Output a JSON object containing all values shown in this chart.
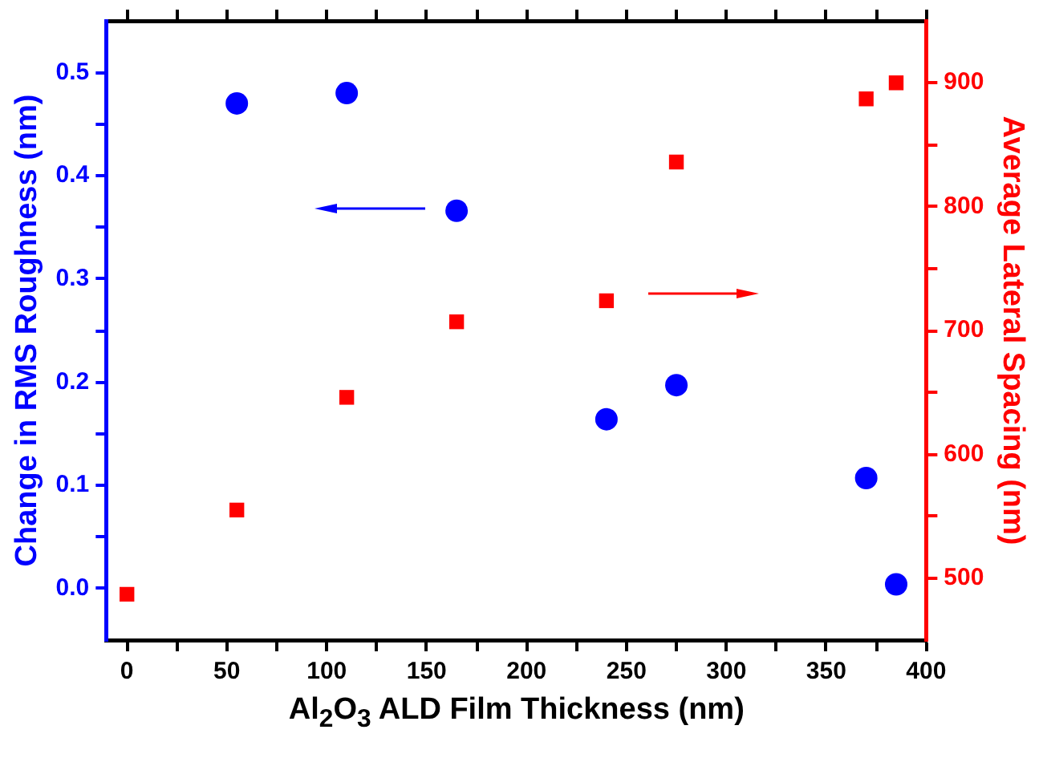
{
  "chart_data": {
    "type": "scatter",
    "xlabel": "Al$_{2}$O$_{3}$ ALD Film Thickness (nm)",
    "ylabel": "Change in RMS Roughness (nm)",
    "y2label": "Average Lateral Spacing (nm)",
    "x": [
      0,
      55,
      110,
      165,
      240,
      275,
      370,
      385
    ],
    "series": [
      {
        "color": "#0000ff",
        "marker": "circle",
        "x": [
          55,
          110,
          165,
          240,
          275,
          370,
          385
        ],
        "values": [
          0.47,
          0.48,
          0.366,
          0.164,
          0.197,
          0.107,
          0.004
        ]
      },
      {
        "color": "#ff0000",
        "marker": "square",
        "axis": "y2",
        "values": [
          487,
          555,
          646,
          707,
          724,
          836,
          887,
          900
        ]
      }
    ],
    "xlim": [
      -10,
      400
    ],
    "xticks": [
      0,
      {
        "value": 25,
        "label": null
      },
      50,
      {
        "value": 75,
        "label": null
      },
      100,
      {
        "value": 125,
        "label": null
      },
      150,
      {
        "value": 175,
        "label": null
      },
      200,
      {
        "value": 225,
        "label": null
      },
      250,
      {
        "value": 275,
        "label": null
      },
      300,
      {
        "value": 325,
        "label": null
      },
      350,
      {
        "value": 375,
        "label": null
      },
      400
    ],
    "ylim": [
      -0.05,
      0.55
    ],
    "yticks": [
      {
        "value": 0,
        "label": "0.0"
      },
      {
        "value": 0.05,
        "label": null
      },
      0.1,
      {
        "value": 0.15,
        "label": null
      },
      0.2,
      {
        "value": 0.25,
        "label": null
      },
      0.3,
      {
        "value": 0.35,
        "label": null
      },
      0.4,
      {
        "value": 0.45,
        "label": null
      },
      0.5
    ],
    "y2lim": [
      450,
      950
    ],
    "y2ticks": [
      500,
      {
        "value": 550,
        "label": null
      },
      600,
      {
        "value": 650,
        "label": null
      },
      700,
      {
        "value": 750,
        "label": null
      },
      800,
      {
        "value": 850,
        "label": null
      },
      900
    ],
    "grid": false
  }
}
